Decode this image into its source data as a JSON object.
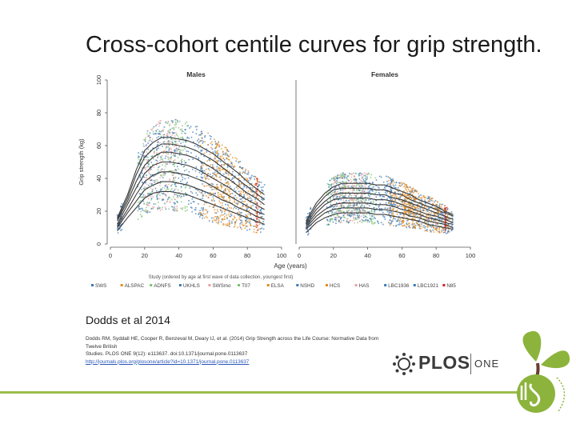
{
  "slide": {
    "title": "Cross-cohort centile curves for grip strength.",
    "attribution": "Dodds et al 2014",
    "citation_line1": "Dodds RM, Syddall HE, Cooper R, Benzeval M, Deary IJ, et al. (2014) Grip Strength across the Life Course: Normative Data from Twelve British",
    "citation_line2": "Studies. PLOS ONE 9(12): e113637. doi:10.1371/journal.pone.0113637",
    "citation_link": "http://journals.plos.org/plosone/article?id=10.1371/journal.pone.0113637",
    "plos_logo_text": "PLOS",
    "plos_one_text": "ONE",
    "colors": {
      "footer_line": "#9cbc4c",
      "logo_green": "#8cb43c",
      "logo_brown": "#6b3d2e"
    }
  },
  "chart_data": [
    {
      "type": "scatter",
      "title": "Males",
      "xlabel": "Age (years)",
      "ylabel": "Grip strength (kg)",
      "xlim": [
        0,
        100
      ],
      "ylim": [
        0,
        100
      ],
      "xticks": [
        0,
        20,
        40,
        60,
        80,
        100
      ],
      "yticks": [
        0,
        20,
        40,
        60,
        80,
        100
      ],
      "grid": false,
      "centile_curves": {
        "ages": [
          4,
          10,
          15,
          20,
          25,
          30,
          35,
          40,
          45,
          50,
          55,
          60,
          65,
          70,
          75,
          80,
          85,
          90
        ],
        "centiles": [
          {
            "values": [
              8,
              16,
              22,
              28,
              31,
              32,
              32,
              31,
              30,
              28,
              26,
              24,
              22,
              20,
              18,
              16,
              14,
              12
            ]
          },
          {
            "values": [
              10,
              19,
              26,
              33,
              36,
              38,
              38,
              37,
              36,
              34,
              32,
              30,
              27,
              25,
              22,
              20,
              17,
              15
            ]
          },
          {
            "values": [
              11,
              21,
              30,
              38,
              42,
              44,
              44,
              43,
              42,
              40,
              38,
              35,
              32,
              29,
              26,
              23,
              20,
              18
            ]
          },
          {
            "values": [
              12,
              24,
              34,
              43,
              48,
              50,
              50,
              49,
              48,
              46,
              43,
              40,
              37,
              34,
              30,
              27,
              24,
              21
            ]
          },
          {
            "values": [
              14,
              26,
              38,
              48,
              53,
              56,
              56,
              55,
              54,
              52,
              49,
              46,
              42,
              39,
              35,
              31,
              28,
              24
            ]
          },
          {
            "values": [
              15,
              28,
              42,
              53,
              58,
              61,
              61,
              60,
              59,
              57,
              54,
              51,
              47,
              43,
              39,
              35,
              31,
              27
            ]
          },
          {
            "values": [
              16,
              30,
              45,
              57,
              62,
              65,
              65,
              64,
              63,
              61,
              58,
              55,
              51,
              47,
              43,
              38,
              34,
              30
            ]
          }
        ]
      }
    },
    {
      "type": "scatter",
      "title": "Females",
      "xlabel": "Age (years)",
      "ylabel": "",
      "xlim": [
        0,
        100
      ],
      "ylim": [
        0,
        100
      ],
      "xticks": [
        0,
        20,
        40,
        60,
        80,
        100
      ],
      "yticks": [],
      "grid": false,
      "centile_curves": {
        "ages": [
          4,
          10,
          15,
          20,
          25,
          30,
          35,
          40,
          45,
          50,
          55,
          60,
          65,
          70,
          75,
          80,
          85,
          90
        ],
        "centiles": [
          {
            "values": [
              7,
              13,
              16,
              18,
              19,
              19,
              19,
              19,
              18,
              18,
              17,
              16,
              15,
              14,
              12,
              11,
              10,
              9
            ]
          },
          {
            "values": [
              9,
              15,
              19,
              21,
              22,
              22,
              22,
              22,
              21,
              21,
              20,
              19,
              17,
              16,
              14,
              13,
              12,
              10
            ]
          },
          {
            "values": [
              10,
              17,
              21,
              24,
              25,
              25,
              25,
              25,
              24,
              24,
              23,
              21,
              20,
              18,
              16,
              15,
              13,
              12
            ]
          },
          {
            "values": [
              11,
              19,
              24,
              27,
              28,
              28,
              28,
              28,
              27,
              27,
              26,
              24,
              22,
              20,
              18,
              17,
              15,
              13
            ]
          },
          {
            "values": [
              12,
              21,
              26,
              30,
              31,
              31,
              31,
              31,
              30,
              30,
              28,
              27,
              25,
              23,
              21,
              19,
              17,
              15
            ]
          },
          {
            "values": [
              13,
              23,
              29,
              33,
              34,
              34,
              34,
              34,
              33,
              33,
              31,
              30,
              27,
              25,
              23,
              21,
              19,
              17
            ]
          },
          {
            "values": [
              14,
              25,
              31,
              35,
              37,
              37,
              37,
              37,
              36,
              36,
              34,
              32,
              30,
              27,
              25,
              23,
              20,
              18
            ]
          }
        ]
      }
    }
  ],
  "legend": {
    "title": "Study (ordered by age at first wave of data collection, youngest first)",
    "placement": "bottom",
    "items": [
      {
        "label": "SWS",
        "color": "#3a7ab8"
      },
      {
        "label": "ALSPAC",
        "color": "#e08a20"
      },
      {
        "label": "ADNFS",
        "color": "#7ac070"
      },
      {
        "label": "UKHLS",
        "color": "#3a7ab8"
      },
      {
        "label": "SWSmo",
        "color": "#e8a0a0"
      },
      {
        "label": "T07",
        "color": "#7ac070"
      },
      {
        "label": "ELSA",
        "color": "#e08a20"
      },
      {
        "label": "NSHD",
        "color": "#3a7ab8"
      },
      {
        "label": "HCS",
        "color": "#e08a20"
      },
      {
        "label": "HAS",
        "color": "#e8a0a0"
      },
      {
        "label": "LBC1936",
        "color": "#3a7ab8"
      },
      {
        "label": "LBC1921",
        "color": "#3a7ab8"
      },
      {
        "label": "N85",
        "color": "#d62020"
      }
    ]
  },
  "cohort_clouds": [
    {
      "name": "SWS",
      "color": "#3a7ab8",
      "age_range": [
        4,
        7
      ],
      "centile_band": [
        0,
        6
      ]
    },
    {
      "name": "ADNFS",
      "color": "#7ac070",
      "age_range": [
        16,
        45
      ],
      "centile_band": [
        0,
        6
      ]
    },
    {
      "name": "SWSmo",
      "color": "#e8a0a0",
      "age_range": [
        20,
        40
      ],
      "centile_band": [
        0,
        6
      ]
    },
    {
      "name": "UKHLS",
      "color": "#3a7ab8",
      "age_range": [
        16,
        90
      ],
      "centile_band": [
        0,
        6
      ]
    },
    {
      "name": "ELSA",
      "color": "#e08a20",
      "age_range": [
        52,
        88
      ],
      "centile_band": [
        1,
        5
      ]
    },
    {
      "name": "NSHD",
      "color": "#3a7ab8",
      "age_range": [
        53,
        54
      ],
      "centile_band": [
        0,
        6
      ]
    },
    {
      "name": "HCS",
      "color": "#e08a20",
      "age_range": [
        60,
        70
      ],
      "centile_band": [
        0,
        6
      ]
    },
    {
      "name": "N85",
      "color": "#d62020",
      "age_range": [
        85,
        86
      ],
      "centile_band": [
        0,
        6
      ]
    }
  ]
}
